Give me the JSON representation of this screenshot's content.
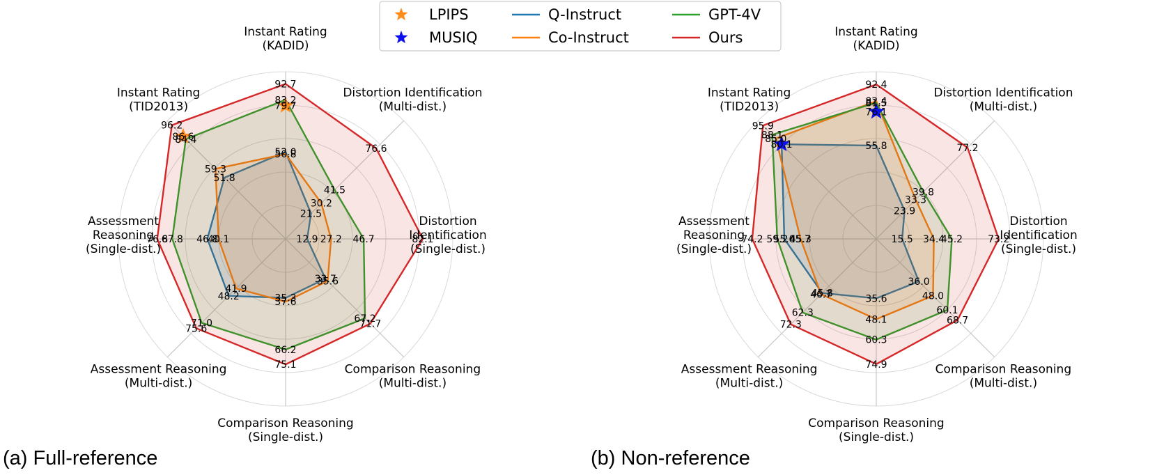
{
  "legend": {
    "items": [
      {
        "name": "LPIPS",
        "kind": "marker",
        "color": "#ff8c1a"
      },
      {
        "name": "MUSIQ",
        "kind": "marker",
        "color": "#0a10ee"
      },
      {
        "name": "Q-Instruct",
        "kind": "line",
        "color": "#1f77b4"
      },
      {
        "name": "Co-Instruct",
        "kind": "line",
        "color": "#ff7f0e"
      },
      {
        "name": "GPT-4V",
        "kind": "line",
        "color": "#2ca02c"
      },
      {
        "name": "Ours",
        "kind": "line",
        "color": "#d62728"
      }
    ]
  },
  "chart_data": [
    {
      "type": "radar",
      "caption": "(a) Full-reference",
      "axes": [
        {
          "lines": [
            "Instant Rating",
            "(KADID)"
          ]
        },
        {
          "lines": [
            "Distortion Identification",
            "(Multi-dist.)"
          ]
        },
        {
          "lines": [
            "Distortion",
            "Identification",
            "(Single-dist.)"
          ]
        },
        {
          "lines": [
            "Comparison Reasoning",
            "(Multi-dist.)"
          ]
        },
        {
          "lines": [
            "Comparison Reasoning",
            "(Single-dist.)"
          ]
        },
        {
          "lines": [
            "Assessment Reasoning",
            "(Multi-dist.)"
          ]
        },
        {
          "lines": [
            "Assessment",
            "Reasoning",
            "(Single-dist.)"
          ]
        },
        {
          "lines": [
            "Instant Rating",
            "(TID2013)"
          ]
        }
      ],
      "series": [
        {
          "name": "Q-Instruct",
          "color": "#1f77b4",
          "values": [
            52.0,
            21.5,
            12.9,
            33.7,
            35.3,
            48.2,
            46.8,
            51.8
          ]
        },
        {
          "name": "Co-Instruct",
          "color": "#ff7f0e",
          "values": [
            50.8,
            30.2,
            27.2,
            35.6,
            37.6,
            41.9,
            40.1,
            59.3
          ]
        },
        {
          "name": "GPT-4V",
          "color": "#2ca02c",
          "values": [
            83.2,
            41.5,
            46.7,
            67.2,
            66.2,
            71.0,
            67.8,
            84.4
          ]
        },
        {
          "name": "Ours",
          "color": "#d62728",
          "values": [
            92.7,
            76.6,
            82.1,
            71.7,
            75.1,
            75.6,
            76.8,
            96.2
          ]
        }
      ],
      "markers": [
        {
          "name": "LPIPS",
          "color": "#ff8c1a",
          "axis_index": 0,
          "value": 79.7
        },
        {
          "name": "LPIPS",
          "color": "#ff8c1a",
          "axis_index": 7,
          "value": 86.6
        }
      ],
      "value_labels": [
        {
          "text": "92.7",
          "axis": 0,
          "r": 92.7
        },
        {
          "text": "83.2",
          "axis": 0,
          "r": 83.2
        },
        {
          "text": "79.7",
          "axis": 0,
          "r": 79.7
        },
        {
          "text": "52.0",
          "axis": 0,
          "r": 52.0
        },
        {
          "text": "50.8",
          "axis": 0,
          "r": 50.8
        },
        {
          "text": "76.6",
          "axis": 1,
          "r": 76.6
        },
        {
          "text": "41.5",
          "axis": 1,
          "r": 41.5
        },
        {
          "text": "30.2",
          "axis": 1,
          "r": 30.2
        },
        {
          "text": "21.5",
          "axis": 1,
          "r": 21.5
        },
        {
          "text": "82.1",
          "axis": 2,
          "r": 82.1
        },
        {
          "text": "46.7",
          "axis": 2,
          "r": 46.7
        },
        {
          "text": "27.2",
          "axis": 2,
          "r": 27.2
        },
        {
          "text": "12.9",
          "axis": 2,
          "r": 12.9
        },
        {
          "text": "71.7",
          "axis": 3,
          "r": 71.7
        },
        {
          "text": "67.2",
          "axis": 3,
          "r": 67.2
        },
        {
          "text": "35.6",
          "axis": 3,
          "r": 35.6
        },
        {
          "text": "33.7",
          "axis": 3,
          "r": 33.7
        },
        {
          "text": "75.1",
          "axis": 4,
          "r": 75.1
        },
        {
          "text": "66.2",
          "axis": 4,
          "r": 66.2
        },
        {
          "text": "37.6",
          "axis": 4,
          "r": 37.6
        },
        {
          "text": "35.3",
          "axis": 4,
          "r": 35.3
        },
        {
          "text": "75.6",
          "axis": 5,
          "r": 75.6
        },
        {
          "text": "71.0",
          "axis": 5,
          "r": 71.0
        },
        {
          "text": "48.2",
          "axis": 5,
          "r": 48.2
        },
        {
          "text": "41.9",
          "axis": 5,
          "r": 41.9
        },
        {
          "text": "76.8",
          "axis": 6,
          "r": 76.8
        },
        {
          "text": "67.8",
          "axis": 6,
          "r": 67.8
        },
        {
          "text": "46.8",
          "axis": 6,
          "r": 46.8
        },
        {
          "text": "40.1",
          "axis": 6,
          "r": 40.1
        },
        {
          "text": "96.2",
          "axis": 7,
          "r": 96.2
        },
        {
          "text": "86.6",
          "axis": 7,
          "r": 86.6
        },
        {
          "text": "84.4",
          "axis": 7,
          "r": 84.4
        },
        {
          "text": "59.3",
          "axis": 7,
          "r": 59.3
        },
        {
          "text": "51.8",
          "axis": 7,
          "r": 51.8
        }
      ]
    },
    {
      "type": "radar",
      "caption": "(b) Non-reference",
      "axes": [
        {
          "lines": [
            "Instant Rating",
            "(KADID)"
          ]
        },
        {
          "lines": [
            "Distortion Identification",
            "(Multi-dist.)"
          ]
        },
        {
          "lines": [
            "Distortion",
            "Identification",
            "(Single-dist.)"
          ]
        },
        {
          "lines": [
            "Comparison Reasoning",
            "(Multi-dist.)"
          ]
        },
        {
          "lines": [
            "Comparison Reasoning",
            "(Single-dist.)"
          ]
        },
        {
          "lines": [
            "Assessment Reasoning",
            "(Multi-dist.)"
          ]
        },
        {
          "lines": [
            "Assessment",
            "Reasoning",
            "(Single-dist.)"
          ]
        },
        {
          "lines": [
            "Instant Rating",
            "(TID2013)"
          ]
        }
      ],
      "series": [
        {
          "name": "Q-Instruct",
          "color": "#1f77b4",
          "values": [
            55.8,
            23.9,
            15.5,
            36.0,
            35.6,
            45.8,
            55.0,
            80.1
          ]
        },
        {
          "name": "Co-Instruct",
          "color": "#ff7f0e",
          "values": [
            82.4,
            33.3,
            34.4,
            48.0,
            48.1,
            46.7,
            45.3,
            85.0
          ]
        },
        {
          "name": "GPT-4V",
          "color": "#2ca02c",
          "values": [
            81.5,
            39.8,
            45.2,
            60.1,
            60.3,
            62.3,
            59.2,
            88.1
          ]
        },
        {
          "name": "Ours",
          "color": "#d62728",
          "values": [
            92.4,
            77.2,
            73.2,
            68.7,
            74.9,
            72.3,
            74.2,
            95.9
          ]
        }
      ],
      "markers": [
        {
          "name": "MUSIQ",
          "color": "#0a10ee",
          "axis_index": 0,
          "value": 76.1
        },
        {
          "name": "MUSIQ",
          "color": "#0a10ee",
          "axis_index": 7,
          "value": 80.1
        }
      ],
      "value_labels": [
        {
          "text": "92.4",
          "axis": 0,
          "r": 92.4
        },
        {
          "text": "82.4",
          "axis": 0,
          "r": 82.4
        },
        {
          "text": "81.5",
          "axis": 0,
          "r": 81.5
        },
        {
          "text": "76.1",
          "axis": 0,
          "r": 76.1
        },
        {
          "text": "55.8",
          "axis": 0,
          "r": 55.8
        },
        {
          "text": "77.2",
          "axis": 1,
          "r": 77.2
        },
        {
          "text": "39.8",
          "axis": 1,
          "r": 39.8
        },
        {
          "text": "33.3",
          "axis": 1,
          "r": 33.3
        },
        {
          "text": "23.9",
          "axis": 1,
          "r": 23.9
        },
        {
          "text": "73.2",
          "axis": 2,
          "r": 73.2
        },
        {
          "text": "45.2",
          "axis": 2,
          "r": 45.2
        },
        {
          "text": "34.4",
          "axis": 2,
          "r": 34.4
        },
        {
          "text": "15.5",
          "axis": 2,
          "r": 15.5
        },
        {
          "text": "68.7",
          "axis": 3,
          "r": 68.7
        },
        {
          "text": "60.1",
          "axis": 3,
          "r": 60.1
        },
        {
          "text": "48.0",
          "axis": 3,
          "r": 48.0
        },
        {
          "text": "36.0",
          "axis": 3,
          "r": 36.0
        },
        {
          "text": "74.9",
          "axis": 4,
          "r": 74.9
        },
        {
          "text": "60.3",
          "axis": 4,
          "r": 60.3
        },
        {
          "text": "48.1",
          "axis": 4,
          "r": 48.1
        },
        {
          "text": "35.6",
          "axis": 4,
          "r": 35.6
        },
        {
          "text": "72.3",
          "axis": 5,
          "r": 72.3
        },
        {
          "text": "62.3",
          "axis": 5,
          "r": 62.3
        },
        {
          "text": "46.7",
          "axis": 5,
          "r": 46.7
        },
        {
          "text": "45.8",
          "axis": 5,
          "r": 45.8
        },
        {
          "text": "74.2",
          "axis": 6,
          "r": 74.2
        },
        {
          "text": "59.2",
          "axis": 6,
          "r": 59.2
        },
        {
          "text": "45.7",
          "axis": 6,
          "r": 45.7
        },
        {
          "text": "45.3",
          "axis": 6,
          "r": 45.3
        },
        {
          "text": "55.0",
          "axis": 6,
          "r": 55.0
        },
        {
          "text": "95.9",
          "axis": 7,
          "r": 95.9
        },
        {
          "text": "88.1",
          "axis": 7,
          "r": 88.1
        },
        {
          "text": "85.0",
          "axis": 7,
          "r": 85.0
        },
        {
          "text": "80.1",
          "axis": 7,
          "r": 80.1
        }
      ]
    }
  ]
}
